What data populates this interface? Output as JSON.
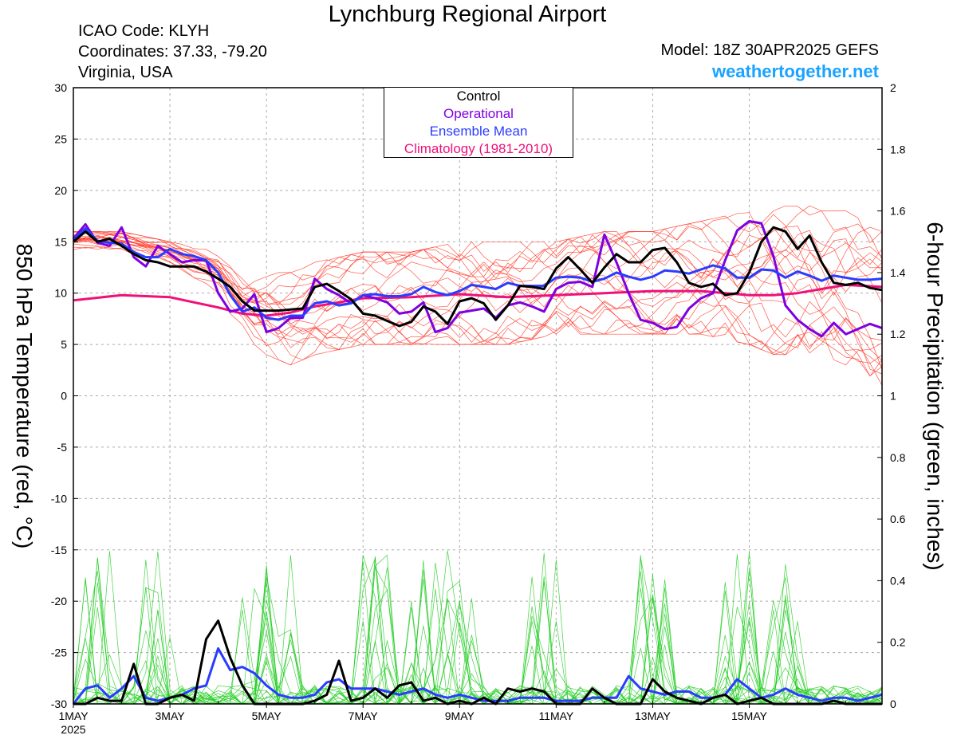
{
  "header": {
    "title": "Lynchburg Regional Airport",
    "icao": "ICAO Code: KLYH",
    "coordinates": "Coordinates: 37.33, -79.20",
    "region": "Virginia, USA",
    "model": "Model: 18Z 30APR2025 GEFS",
    "brand": "weathertogether.net"
  },
  "chart_data": {
    "type": "line",
    "title": "Lynchburg Regional Airport",
    "ylabel": "850 hPa Temperature (red, °C)",
    "y2label": "6-hour Precipitation (green, inches)",
    "ylim": [
      -30,
      30
    ],
    "y2lim": [
      0,
      2
    ],
    "yticks": [
      30,
      25,
      20,
      15,
      10,
      5,
      0,
      -5,
      -10,
      -15,
      -20,
      -25,
      -30
    ],
    "y2ticks": [
      "2",
      "1.8",
      "1.6",
      "1.4",
      "1.2",
      "1",
      "0.8",
      "0.6",
      "0.4",
      "0.2",
      "0"
    ],
    "x_unit": "days since 1 May 2025 00Z",
    "xlim": [
      0,
      16.75
    ],
    "xticks": [
      {
        "x": 0,
        "label": "1MAY",
        "sub": "2025"
      },
      {
        "x": 2,
        "label": "3MAY"
      },
      {
        "x": 4,
        "label": "5MAY"
      },
      {
        "x": 6,
        "label": "7MAY"
      },
      {
        "x": 8,
        "label": "9MAY"
      },
      {
        "x": 10,
        "label": "11MAY"
      },
      {
        "x": 12,
        "label": "13MAY"
      },
      {
        "x": 14,
        "label": "15MAY"
      }
    ],
    "legend": [
      "Control",
      "Operational",
      "Ensemble Mean",
      "Climatology (1981-2010)"
    ],
    "legend_position": "top-center",
    "grid": true,
    "colors": {
      "control": "#000000",
      "operational": "#8000e0",
      "ensemble_mean": "#2a3cff",
      "climatology": "#f0107a",
      "members_temp": "#ff3a2a",
      "members_precip": "#22cc22",
      "brand": "#1aa3ff"
    },
    "series": [
      {
        "name": "Control",
        "axis": "temperature",
        "x": [
          0,
          0.25,
          0.5,
          0.75,
          1,
          1.25,
          1.5,
          1.75,
          2,
          2.25,
          2.5,
          2.75,
          3,
          3.25,
          3.5,
          3.75,
          4,
          4.25,
          4.5,
          4.75,
          5,
          5.25,
          5.5,
          5.75,
          6,
          6.25,
          6.5,
          6.75,
          7,
          7.25,
          7.5,
          7.75,
          8,
          8.25,
          8.5,
          8.75,
          9,
          9.25,
          9.5,
          9.75,
          10,
          10.25,
          10.5,
          10.75,
          11,
          11.25,
          11.5,
          11.75,
          12,
          12.25,
          12.5,
          12.75,
          13,
          13.25,
          13.5,
          13.75,
          14,
          14.25,
          14.5,
          14.75,
          15,
          15.25,
          15.5,
          15.75,
          16,
          16.25,
          16.5,
          16.75
        ],
        "values": [
          15,
          16,
          15,
          15.3,
          14.6,
          13.8,
          13.2,
          13,
          12.6,
          12.6,
          12.6,
          12.1,
          11.4,
          10.6,
          9.2,
          8.3,
          8.3,
          8.3,
          8.4,
          8.5,
          10.6,
          10.9,
          10.2,
          9.4,
          8,
          7.8,
          7.3,
          6.8,
          7.2,
          8.7,
          8.2,
          7,
          9.2,
          9.5,
          9,
          7.4,
          8.8,
          10.7,
          10.6,
          10.4,
          12.4,
          13.5,
          12.3,
          11,
          12.5,
          13.8,
          13,
          13,
          14.2,
          14.4,
          13,
          11,
          10.6,
          10.9,
          9.8,
          10,
          12,
          15,
          16.4,
          16,
          14.3,
          15.6,
          13,
          11,
          10.8,
          11,
          10.5,
          10.3
        ]
      },
      {
        "name": "Operational",
        "axis": "temperature",
        "x": [
          0,
          0.25,
          0.5,
          0.75,
          1,
          1.25,
          1.5,
          1.75,
          2,
          2.25,
          2.5,
          2.75,
          3,
          3.25,
          3.5,
          3.75,
          4,
          4.25,
          4.5,
          4.75,
          5,
          5.25,
          5.5,
          5.75,
          6,
          6.25,
          6.5,
          6.75,
          7,
          7.25,
          7.5,
          7.75,
          8,
          8.25,
          8.5,
          8.75,
          9,
          9.25,
          9.5,
          9.75,
          10,
          10.25,
          10.5,
          10.75,
          11,
          11.25,
          11.5,
          11.75,
          12,
          12.25,
          12.5,
          12.75,
          13,
          13.25,
          13.5,
          13.75,
          14,
          14.25,
          14.5,
          14.75,
          15,
          15.25,
          15.5,
          15.75,
          16,
          16.25,
          16.5,
          16.75
        ],
        "values": [
          15.3,
          16.7,
          14.9,
          14.6,
          16.4,
          13.5,
          12.6,
          14.6,
          13.8,
          13,
          13.2,
          13.2,
          10,
          8.2,
          8.5,
          9.9,
          6.2,
          6.6,
          7.6,
          7.6,
          11.4,
          10.4,
          9.8,
          9,
          9.8,
          9.5,
          9.1,
          8,
          8.2,
          9.1,
          6.2,
          6.6,
          8.1,
          8.3,
          8.5,
          7.6,
          8.8,
          9.1,
          8.7,
          8.2,
          10.4,
          11,
          11.1,
          10.6,
          15.7,
          13,
          10,
          7.4,
          7.1,
          6.5,
          6.7,
          8.5,
          9.5,
          10,
          13.2,
          16.1,
          17,
          16.8,
          13.6,
          8.8,
          7.4,
          6.5,
          5.8,
          7.1,
          6,
          6.5,
          7,
          6.6
        ]
      },
      {
        "name": "Ensemble Mean",
        "axis": "temperature",
        "x": [
          0,
          0.25,
          0.5,
          0.75,
          1,
          1.25,
          1.5,
          1.75,
          2,
          2.25,
          2.5,
          2.75,
          3,
          3.25,
          3.5,
          3.75,
          4,
          4.25,
          4.5,
          4.75,
          5,
          5.25,
          5.5,
          5.75,
          6,
          6.25,
          6.5,
          6.75,
          7,
          7.25,
          7.5,
          7.75,
          8,
          8.25,
          8.5,
          8.75,
          9,
          9.25,
          9.5,
          9.75,
          10,
          10.25,
          10.5,
          10.75,
          11,
          11.25,
          11.5,
          11.75,
          12,
          12.25,
          12.5,
          12.75,
          13,
          13.25,
          13.5,
          13.75,
          14,
          14.25,
          14.5,
          14.75,
          15,
          15.25,
          15.5,
          15.75,
          16,
          16.25,
          16.5,
          16.75
        ],
        "values": [
          15.2,
          16.3,
          15.1,
          14.9,
          14.8,
          14,
          13.5,
          13.5,
          14.3,
          13.8,
          13.6,
          13.2,
          12,
          9.8,
          8.2,
          8.6,
          7.6,
          7.4,
          7.8,
          7.8,
          9,
          9.2,
          8.8,
          9,
          9.8,
          9.9,
          9.7,
          9.7,
          9.9,
          10.6,
          10.1,
          9.8,
          10.2,
          10.8,
          10.6,
          10.4,
          11,
          10.7,
          10.7,
          10.7,
          11.5,
          11.6,
          11.5,
          11.1,
          11.4,
          12,
          11.6,
          11.3,
          11.6,
          12.2,
          12.1,
          11.9,
          12.3,
          12.7,
          12.4,
          11.5,
          11.5,
          12.3,
          12.2,
          11.5,
          12.1,
          11.7,
          11.2,
          11.7,
          11.5,
          11.3,
          11.3,
          11.4
        ]
      },
      {
        "name": "Climatology (1981-2010)",
        "axis": "temperature",
        "x": [
          0,
          1,
          2,
          3,
          3.5,
          4,
          4.5,
          5,
          6,
          7,
          8,
          9,
          10,
          11,
          12,
          13,
          14,
          14.5,
          15,
          15.5,
          16,
          16.75
        ],
        "values": [
          9.3,
          9.8,
          9.6,
          8.6,
          8.0,
          7.8,
          8.1,
          8.7,
          9.5,
          9.6,
          9.9,
          9.6,
          9.8,
          10.0,
          10.2,
          10.2,
          9.8,
          9.8,
          10.0,
          10.4,
          10.8,
          10.6
        ]
      },
      {
        "name": "Control",
        "axis": "precipitation",
        "x": [
          0,
          0.25,
          0.5,
          0.75,
          1,
          1.25,
          1.5,
          1.75,
          2,
          2.25,
          2.5,
          2.75,
          3,
          3.25,
          3.5,
          3.75,
          4,
          4.25,
          4.5,
          4.75,
          5,
          5.25,
          5.5,
          5.75,
          6,
          6.25,
          6.5,
          6.75,
          7,
          7.25,
          7.5,
          7.75,
          8,
          8.25,
          8.5,
          8.75,
          9,
          9.25,
          9.5,
          9.75,
          10,
          10.25,
          10.5,
          10.75,
          11,
          11.25,
          11.5,
          11.75,
          12,
          12.25,
          12.5,
          12.75,
          13,
          13.25,
          13.5,
          13.75,
          14,
          14.25,
          14.5,
          14.75,
          15,
          15.25,
          15.5,
          15.75,
          16,
          16.25,
          16.5,
          16.75
        ],
        "values": [
          0,
          0,
          0.02,
          0.01,
          0.01,
          0.13,
          0,
          0,
          0.02,
          0.03,
          0.01,
          0.21,
          0.27,
          0.15,
          0.06,
          0,
          0,
          0,
          0,
          0,
          0.01,
          0.03,
          0.14,
          0.01,
          0.02,
          0.05,
          0.02,
          0.06,
          0.07,
          0.01,
          0.02,
          0,
          0.01,
          0,
          0.02,
          0,
          0.05,
          0.04,
          0.05,
          0.04,
          0,
          0,
          0,
          0.05,
          0.02,
          0,
          0,
          0,
          0.08,
          0.04,
          0.02,
          0.01,
          0,
          0.02,
          0.03,
          0,
          0.01,
          0.02,
          0,
          0,
          0,
          0,
          0,
          0.01,
          0,
          0,
          0,
          0
        ]
      },
      {
        "name": "Ensemble Mean",
        "axis": "precipitation",
        "x": [
          0,
          0.25,
          0.5,
          0.75,
          1,
          1.25,
          1.5,
          1.75,
          2,
          2.25,
          2.5,
          2.75,
          3,
          3.25,
          3.5,
          3.75,
          4,
          4.25,
          4.5,
          4.75,
          5,
          5.25,
          5.5,
          5.75,
          6,
          6.25,
          6.5,
          6.75,
          7,
          7.25,
          7.5,
          7.75,
          8,
          8.25,
          8.5,
          8.75,
          9,
          9.25,
          9.5,
          9.75,
          10,
          10.25,
          10.5,
          10.75,
          11,
          11.25,
          11.5,
          11.75,
          12,
          12.25,
          12.5,
          12.75,
          13,
          13.25,
          13.5,
          13.75,
          14,
          14.25,
          14.5,
          14.75,
          15,
          15.25,
          15.5,
          15.75,
          16,
          16.25,
          16.5,
          16.75
        ],
        "values": [
          0,
          0.05,
          0.06,
          0.02,
          0.05,
          0.09,
          0.02,
          0.01,
          0.02,
          0.03,
          0.05,
          0.06,
          0.18,
          0.11,
          0.12,
          0.1,
          0.06,
          0.03,
          0.02,
          0.02,
          0.03,
          0.07,
          0.08,
          0.05,
          0.05,
          0.05,
          0.04,
          0.03,
          0.04,
          0.05,
          0.03,
          0.02,
          0.03,
          0.02,
          0.01,
          0.01,
          0.01,
          0.02,
          0.02,
          0.02,
          0.01,
          0.01,
          0.01,
          0.02,
          0.02,
          0.02,
          0.09,
          0.05,
          0.04,
          0.03,
          0.04,
          0.04,
          0.02,
          0.02,
          0.03,
          0.08,
          0.05,
          0.02,
          0.03,
          0.05,
          0.03,
          0.02,
          0.01,
          0.02,
          0.02,
          0.01,
          0.02,
          0.03
        ]
      }
    ],
    "ensemble_members": {
      "temperature_count": 20,
      "precipitation_count": 20,
      "temperature_spread": {
        "x": [
          0,
          1,
          2,
          3,
          3.5,
          4,
          4.5,
          5,
          6,
          7,
          8,
          9,
          10,
          11,
          12,
          13,
          14,
          14.5,
          15,
          15.5,
          16,
          16.75
        ],
        "lower": [
          14,
          14,
          13,
          10,
          6,
          4,
          3,
          4,
          5,
          5,
          5,
          5,
          6,
          6,
          6,
          6,
          5,
          4,
          4,
          4,
          3,
          1
        ],
        "upper": [
          16,
          16,
          15,
          14,
          12,
          12,
          12,
          13,
          14,
          14,
          15,
          15,
          15,
          16,
          16,
          17,
          18,
          18,
          19,
          18,
          18,
          16
        ]
      }
    }
  }
}
